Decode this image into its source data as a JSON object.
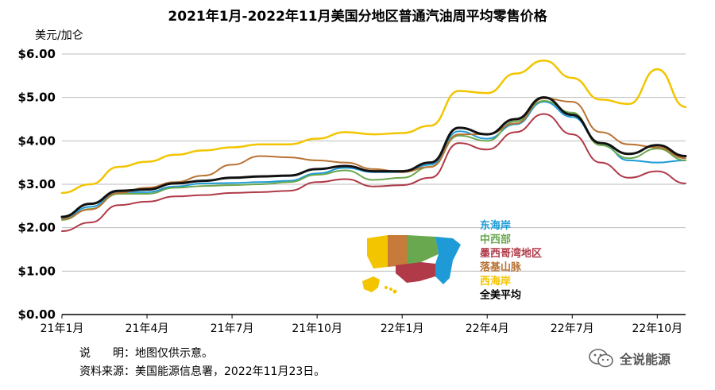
{
  "title": "2021年1月-2022年11月美国分地区普通汽油周平均零售价格",
  "unit": "美元/加仑",
  "notes": {
    "line1": "说　　明：地图仅供示意。",
    "line2": "资料来源：美国能源信息署，2022年11月23日。"
  },
  "watermark": {
    "text": "全说能源",
    "icon": "wechat-icon"
  },
  "map_icon": "us-regions-map-icon",
  "chart_data": {
    "type": "line",
    "title": "2021年1月-2022年11月美国分地区普通汽油周平均零售价格",
    "ylabel": "美元/加仑",
    "xlabel": "",
    "ylim": [
      0,
      6
    ],
    "yticks": [
      "$0.00",
      "$1.00",
      "$2.00",
      "$3.00",
      "$4.00",
      "$5.00",
      "$6.00"
    ],
    "xticks": [
      "21年1月",
      "21年4月",
      "21年7月",
      "21年10月",
      "22年1月",
      "22年4月",
      "22年7月",
      "22年10月"
    ],
    "grid": true,
    "legend_position": "bottom-right",
    "x": [
      "2021-01",
      "2021-02",
      "2021-03",
      "2021-04",
      "2021-05",
      "2021-06",
      "2021-07",
      "2021-08",
      "2021-09",
      "2021-10",
      "2021-11",
      "2021-12",
      "2022-01",
      "2022-02",
      "2022-03",
      "2022-04",
      "2022-05",
      "2022-06",
      "2022-07",
      "2022-08",
      "2022-09",
      "2022-10",
      "2022-11"
    ],
    "series": [
      {
        "name": "东海岸",
        "color": "#1e9bd7",
        "width": 2,
        "values": [
          2.22,
          2.48,
          2.82,
          2.82,
          2.95,
          3.02,
          3.03,
          3.05,
          3.08,
          3.25,
          3.38,
          3.28,
          3.28,
          3.45,
          4.22,
          4.05,
          4.38,
          4.9,
          4.55,
          3.95,
          3.55,
          3.5,
          3.55
        ]
      },
      {
        "name": "中西部",
        "color": "#6aa84f",
        "width": 2,
        "values": [
          2.18,
          2.43,
          2.78,
          2.78,
          2.92,
          2.96,
          2.98,
          3.0,
          3.05,
          3.22,
          3.32,
          3.1,
          3.15,
          3.4,
          4.12,
          4.0,
          4.45,
          4.92,
          4.65,
          3.9,
          3.6,
          3.82,
          3.55
        ]
      },
      {
        "name": "墨西哥湾地区",
        "color": "#b03a48",
        "width": 2,
        "values": [
          1.92,
          2.12,
          2.52,
          2.6,
          2.72,
          2.75,
          2.8,
          2.82,
          2.85,
          3.05,
          3.12,
          2.95,
          2.98,
          3.15,
          3.95,
          3.8,
          4.2,
          4.62,
          4.15,
          3.5,
          3.15,
          3.3,
          3.02
        ]
      },
      {
        "name": "落基山脉",
        "color": "#b87333",
        "width": 2,
        "values": [
          2.2,
          2.42,
          2.8,
          2.92,
          3.05,
          3.2,
          3.45,
          3.65,
          3.62,
          3.55,
          3.5,
          3.35,
          3.28,
          3.4,
          4.15,
          4.15,
          4.4,
          4.98,
          4.9,
          4.2,
          3.92,
          3.85,
          3.6
        ]
      },
      {
        "name": "西海岸",
        "color": "#f2c500",
        "width": 2.5,
        "values": [
          2.8,
          3.0,
          3.4,
          3.52,
          3.68,
          3.78,
          3.85,
          3.92,
          3.92,
          4.05,
          4.2,
          4.15,
          4.18,
          4.35,
          5.15,
          5.1,
          5.55,
          5.85,
          5.45,
          4.95,
          4.85,
          5.65,
          4.78
        ]
      },
      {
        "name": "全美平均",
        "color": "#111111",
        "width": 3,
        "values": [
          2.25,
          2.55,
          2.85,
          2.88,
          3.02,
          3.08,
          3.15,
          3.18,
          3.2,
          3.35,
          3.42,
          3.3,
          3.3,
          3.5,
          4.3,
          4.15,
          4.5,
          5.0,
          4.6,
          3.95,
          3.7,
          3.9,
          3.65
        ]
      }
    ]
  }
}
